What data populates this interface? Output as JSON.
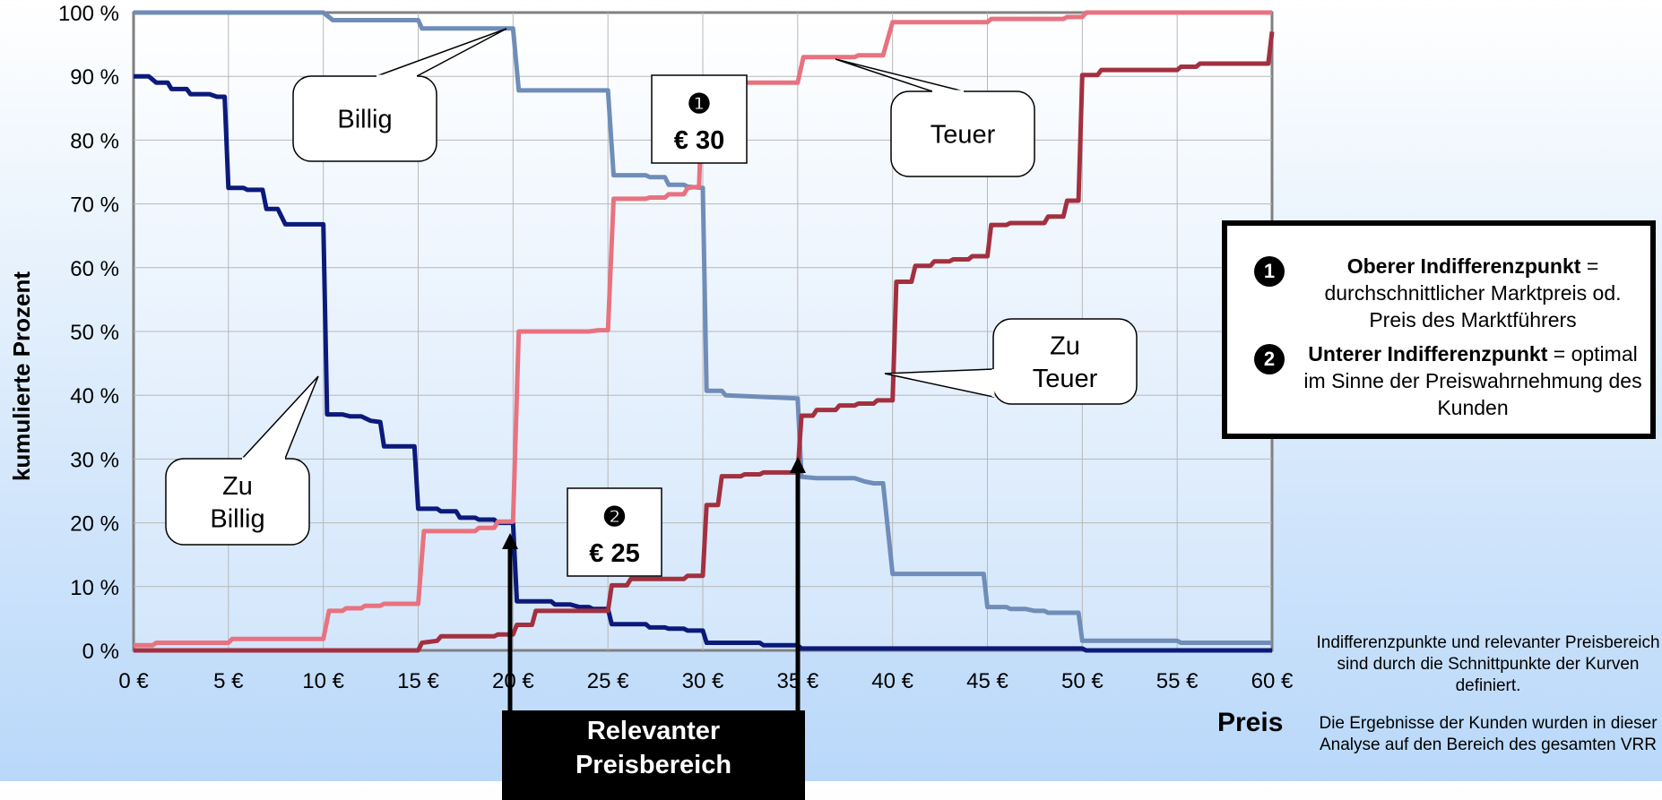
{
  "chart_data": {
    "type": "line",
    "xlabel": "Preis",
    "ylabel": "kumulierte Prozent",
    "xlim": [
      0,
      60
    ],
    "ylim": [
      0,
      100
    ],
    "x_ticks": [
      "0 €",
      "5 €",
      "10 €",
      "15 €",
      "20 €",
      "25 €",
      "30 €",
      "35 €",
      "40 €",
      "45 €",
      "50 €",
      "55 €",
      "60 €"
    ],
    "y_ticks": [
      "0 %",
      "10 %",
      "20 %",
      "30 %",
      "40 %",
      "50 %",
      "60 %",
      "70 %",
      "80 %",
      "90 %",
      "100 %"
    ],
    "grid": true,
    "series": [
      {
        "name": "Zu Billig",
        "color": "#0b1a7a",
        "points": [
          [
            0,
            90
          ],
          [
            0.8,
            90
          ],
          [
            1.2,
            89
          ],
          [
            1.8,
            89
          ],
          [
            2,
            88
          ],
          [
            2.8,
            88
          ],
          [
            3,
            87.2
          ],
          [
            4,
            87.2
          ],
          [
            4.4,
            86.8
          ],
          [
            4.8,
            86.8
          ],
          [
            5,
            72.5
          ],
          [
            5.8,
            72.5
          ],
          [
            6,
            72.2
          ],
          [
            6.8,
            72.2
          ],
          [
            7,
            69.2
          ],
          [
            7.6,
            69.2
          ],
          [
            8,
            66.8
          ],
          [
            10,
            66.8
          ],
          [
            10.2,
            37
          ],
          [
            11,
            37
          ],
          [
            11.4,
            36.7
          ],
          [
            12,
            36.7
          ],
          [
            12.5,
            36
          ],
          [
            13,
            35.8
          ],
          [
            13.2,
            32
          ],
          [
            14.8,
            32
          ],
          [
            15,
            22.2
          ],
          [
            16,
            22.2
          ],
          [
            16.2,
            21.8
          ],
          [
            17,
            21.8
          ],
          [
            17.2,
            20.8
          ],
          [
            18,
            20.8
          ],
          [
            18.2,
            20.5
          ],
          [
            19,
            20.5
          ],
          [
            19.2,
            20
          ],
          [
            20,
            20
          ],
          [
            20.2,
            7.7
          ],
          [
            22,
            7.7
          ],
          [
            22.2,
            7.2
          ],
          [
            23,
            7.2
          ],
          [
            23.5,
            6.8
          ],
          [
            24,
            6.8
          ],
          [
            24.2,
            6.5
          ],
          [
            25,
            6.5
          ],
          [
            25.2,
            4.1
          ],
          [
            27,
            4.1
          ],
          [
            27.2,
            3.6
          ],
          [
            28,
            3.6
          ],
          [
            28.2,
            3.4
          ],
          [
            29,
            3.4
          ],
          [
            29.2,
            3.1
          ],
          [
            30,
            3.1
          ],
          [
            30.2,
            1.2
          ],
          [
            33,
            1.2
          ],
          [
            33.2,
            0.8
          ],
          [
            35,
            0.8
          ],
          [
            35.2,
            0.3
          ],
          [
            45,
            0.3
          ],
          [
            50,
            0.3
          ],
          [
            50.2,
            0
          ],
          [
            60,
            0
          ]
        ]
      },
      {
        "name": "Billig",
        "color": "#6f8db8",
        "points": [
          [
            0,
            100
          ],
          [
            10,
            100
          ],
          [
            10.5,
            98.8
          ],
          [
            15,
            98.8
          ],
          [
            15.2,
            97.5
          ],
          [
            20,
            97.5
          ],
          [
            20.3,
            87.8
          ],
          [
            25,
            87.8
          ],
          [
            25.3,
            74.5
          ],
          [
            27,
            74.5
          ],
          [
            27.2,
            74.2
          ],
          [
            28,
            74.2
          ],
          [
            28.2,
            73
          ],
          [
            29,
            73
          ],
          [
            29.2,
            72.7
          ],
          [
            30,
            72.5
          ],
          [
            30.2,
            40.7
          ],
          [
            31,
            40.7
          ],
          [
            31.2,
            40
          ],
          [
            35,
            39.5
          ],
          [
            35.2,
            27.2
          ],
          [
            36,
            27
          ],
          [
            38,
            27
          ],
          [
            38.5,
            26.5
          ],
          [
            39,
            26.2
          ],
          [
            39.5,
            26.2
          ],
          [
            40,
            12
          ],
          [
            44.8,
            12
          ],
          [
            45,
            6.8
          ],
          [
            46,
            6.8
          ],
          [
            46.2,
            6.5
          ],
          [
            47,
            6.5
          ],
          [
            47.5,
            6.2
          ],
          [
            48,
            6.2
          ],
          [
            48.2,
            5.9
          ],
          [
            49.8,
            5.9
          ],
          [
            50,
            1.5
          ],
          [
            55,
            1.5
          ],
          [
            55.2,
            1.2
          ],
          [
            60,
            1.2
          ]
        ]
      },
      {
        "name": "Teuer",
        "color": "#e8727f",
        "points": [
          [
            0,
            0.8
          ],
          [
            1,
            0.8
          ],
          [
            1.2,
            1.2
          ],
          [
            5,
            1.2
          ],
          [
            5.2,
            1.8
          ],
          [
            10,
            1.8
          ],
          [
            10.3,
            6.2
          ],
          [
            11,
            6.2
          ],
          [
            11.2,
            6.6
          ],
          [
            12,
            6.6
          ],
          [
            12.2,
            7
          ],
          [
            13,
            7
          ],
          [
            13.2,
            7.3
          ],
          [
            15,
            7.3
          ],
          [
            15.3,
            18.7
          ],
          [
            18,
            18.7
          ],
          [
            18.2,
            19.2
          ],
          [
            19,
            19.2
          ],
          [
            19.2,
            20.2
          ],
          [
            20,
            20.2
          ],
          [
            20.3,
            50
          ],
          [
            24,
            50
          ],
          [
            24.5,
            50.2
          ],
          [
            25,
            50.2
          ],
          [
            25.3,
            70.8
          ],
          [
            27,
            70.8
          ],
          [
            27.2,
            71
          ],
          [
            28,
            71
          ],
          [
            28.2,
            71.5
          ],
          [
            29,
            71.5
          ],
          [
            29.2,
            72.5
          ],
          [
            29.8,
            72.7
          ],
          [
            30,
            89
          ],
          [
            35,
            89
          ],
          [
            35.3,
            93
          ],
          [
            38,
            93
          ],
          [
            38.2,
            93.3
          ],
          [
            39.5,
            93.3
          ],
          [
            40,
            98.5
          ],
          [
            45,
            98.5
          ],
          [
            45.2,
            99
          ],
          [
            49,
            99
          ],
          [
            49.2,
            99.3
          ],
          [
            50,
            99.3
          ],
          [
            50.2,
            100
          ],
          [
            60,
            100
          ]
        ]
      },
      {
        "name": "Zu Teuer",
        "color": "#a3303f",
        "points": [
          [
            0,
            0
          ],
          [
            15,
            0
          ],
          [
            15.2,
            1.2
          ],
          [
            16,
            1.5
          ],
          [
            16.2,
            2.2
          ],
          [
            19,
            2.2
          ],
          [
            19.2,
            2.5
          ],
          [
            20,
            2.5
          ],
          [
            20.2,
            4
          ],
          [
            21,
            4
          ],
          [
            21.2,
            6.2
          ],
          [
            25,
            6.2
          ],
          [
            25.2,
            10.2
          ],
          [
            26,
            10.2
          ],
          [
            26.2,
            11.2
          ],
          [
            29,
            11.2
          ],
          [
            29.2,
            11.7
          ],
          [
            30,
            11.7
          ],
          [
            30.2,
            22.8
          ],
          [
            30.8,
            22.8
          ],
          [
            31,
            27.3
          ],
          [
            32,
            27.3
          ],
          [
            32.2,
            27.6
          ],
          [
            33,
            27.6
          ],
          [
            33.2,
            27.9
          ],
          [
            35,
            27.9
          ],
          [
            35.2,
            36.8
          ],
          [
            35.8,
            36.8
          ],
          [
            36,
            37.7
          ],
          [
            37,
            37.7
          ],
          [
            37.2,
            38.4
          ],
          [
            38,
            38.4
          ],
          [
            38.2,
            38.7
          ],
          [
            39,
            38.7
          ],
          [
            39.2,
            39.2
          ],
          [
            40,
            39.2
          ],
          [
            40.2,
            57.8
          ],
          [
            41,
            57.8
          ],
          [
            41.2,
            60.3
          ],
          [
            42,
            60.3
          ],
          [
            42.2,
            61
          ],
          [
            43,
            61
          ],
          [
            43.2,
            61.3
          ],
          [
            44,
            61.3
          ],
          [
            44.2,
            61.8
          ],
          [
            45,
            61.8
          ],
          [
            45.2,
            66.7
          ],
          [
            46,
            66.7
          ],
          [
            46.2,
            67
          ],
          [
            48,
            67
          ],
          [
            48.2,
            68
          ],
          [
            49,
            68
          ],
          [
            49.2,
            70.5
          ],
          [
            49.8,
            70.5
          ],
          [
            50,
            90.2
          ],
          [
            50.8,
            90.2
          ],
          [
            51,
            91
          ],
          [
            55,
            91
          ],
          [
            55.2,
            91.5
          ],
          [
            56,
            91.5
          ],
          [
            56.2,
            92
          ],
          [
            59.8,
            92
          ],
          [
            60,
            97
          ]
        ]
      }
    ],
    "annotations": [
      {
        "text_lines": [
          "Billig"
        ]
      },
      {
        "text_lines": [
          "Teuer"
        ]
      },
      {
        "text_lines": [
          "Zu",
          "Teuer"
        ]
      },
      {
        "text_lines": [
          "Zu",
          "Billig"
        ]
      },
      {
        "marker": "❶",
        "text": "€ 30"
      },
      {
        "marker": "❷",
        "text": "€ 25"
      }
    ]
  },
  "legend": {
    "items": [
      {
        "marker": "❶",
        "bold": "Oberer Indifferenzpunkt",
        "rest": " = durchschnittlicher Marktpreis od. Preis des Marktführers"
      },
      {
        "marker": "❷",
        "bold": "Unterer Indifferenzpunkt",
        "rest": " = optimal im Sinne der Preiswahrnehmung des Kunden"
      }
    ]
  },
  "relevant_range": {
    "line1": "Relevanter",
    "line2": "Preisbereich"
  },
  "preis_label": "Preis",
  "notes": [
    "Indifferenzpunkte und relevanter Preisbereich sind durch die Schnittpunkte der Kurven definiert.",
    "Die Ergebnisse der Kunden wurden in dieser Analyse auf den Bereich des gesamten VRR"
  ]
}
